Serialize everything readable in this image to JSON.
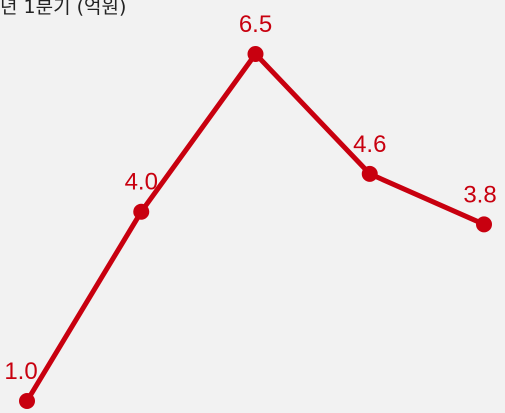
{
  "header": {
    "partial_title": "년 1분기 (억원)"
  },
  "chart_data": {
    "type": "line",
    "categories": [
      "",
      "",
      "",
      "",
      ""
    ],
    "series": [
      {
        "values": [
          1.0,
          4.0,
          6.5,
          4.6,
          3.8
        ]
      }
    ],
    "data_labels": [
      "1.0",
      "4.0",
      "6.5",
      "4.6",
      "3.8"
    ],
    "ylim": [
      1.0,
      6.5
    ],
    "grid": false,
    "legend": "none",
    "colors": {
      "line": "#c8000f",
      "label": "#c8000f",
      "background": "#f2f2f2"
    }
  }
}
